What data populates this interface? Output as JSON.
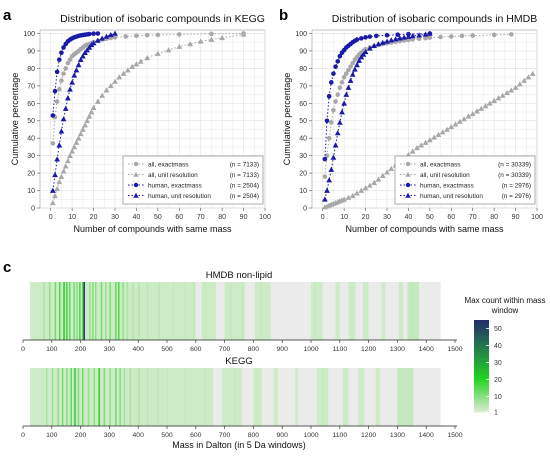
{
  "panel_letters": [
    "a",
    "b",
    "c"
  ],
  "colors": {
    "all": "#a8a8a8",
    "human": "#1a1aa8",
    "grid": "#e4e4e4",
    "strip_bg": "#ebebeb",
    "heat_low": "#d8ecd0",
    "heat_mid": "#22d322",
    "heat_high": "#232a6e"
  },
  "chart_data": [
    {
      "type": "line",
      "panel": "a",
      "title": "Distribution of isobaric compounds in KEGG",
      "xlabel": "Number of compounds with same mass",
      "ylabel": "Cumulative percentage",
      "xlim": [
        -5,
        100
      ],
      "ylim": [
        0,
        102
      ],
      "xticks": [
        0,
        10,
        20,
        30,
        40,
        50,
        60,
        70,
        80,
        90,
        100
      ],
      "yticks": [
        0,
        10,
        20,
        30,
        40,
        50,
        60,
        70,
        80,
        90,
        100
      ],
      "grid": true,
      "legend": "bottom-right",
      "series": [
        {
          "name": "all, exactmass",
          "n": "(n = 7133)",
          "color": "#a8a8a8",
          "marker": "circle",
          "x": [
            1,
            2,
            3,
            4,
            5,
            6,
            7,
            8,
            9,
            10,
            11,
            12,
            13,
            14,
            15,
            16,
            17,
            18,
            19,
            20,
            22,
            24,
            26,
            28,
            30,
            35,
            40,
            45,
            50,
            60,
            75,
            90
          ],
          "y": [
            37,
            52,
            61,
            68,
            73,
            77,
            80,
            83,
            85,
            87,
            88,
            89,
            90,
            91,
            92,
            93,
            93.5,
            94,
            94.5,
            95,
            95.8,
            96.5,
            97,
            97.4,
            97.8,
            98.3,
            98.7,
            99,
            99.2,
            99.5,
            99.8,
            100
          ]
        },
        {
          "name": "all, unit resolution",
          "n": "(n = 7133)",
          "color": "#a8a8a8",
          "marker": "triangle",
          "x": [
            1,
            2,
            3,
            4,
            5,
            6,
            7,
            8,
            9,
            10,
            11,
            12,
            13,
            14,
            15,
            16,
            17,
            18,
            19,
            20,
            22,
            24,
            26,
            28,
            30,
            32,
            34,
            36,
            38,
            40,
            42,
            45,
            50,
            55,
            60,
            65,
            70,
            75,
            80,
            90
          ],
          "y": [
            3,
            7,
            11,
            15,
            18,
            21,
            24,
            27,
            30,
            32.5,
            35,
            37.5,
            40,
            42.5,
            45,
            47.5,
            50,
            52.5,
            55,
            57.5,
            61,
            64.5,
            67.5,
            70,
            72.5,
            75,
            77,
            79,
            81,
            82.5,
            84,
            86,
            88.5,
            90.5,
            92.5,
            94,
            95.5,
            96.5,
            97.5,
            99.5
          ]
        },
        {
          "name": "human, exactmass",
          "n": "(n = 2504)",
          "color": "#1a1aa8",
          "marker": "circle",
          "x": [
            1,
            2,
            3,
            4,
            5,
            6,
            7,
            8,
            9,
            10,
            11,
            12,
            13,
            14,
            15,
            16,
            17,
            18,
            20,
            22
          ],
          "y": [
            53,
            67,
            78,
            85,
            89,
            92,
            94,
            95.5,
            96.5,
            97.2,
            97.8,
            98.2,
            98.6,
            98.9,
            99.1,
            99.3,
            99.5,
            99.7,
            99.9,
            100
          ]
        },
        {
          "name": "human, unit resolution",
          "n": "(n = 2504)",
          "color": "#1a1aa8",
          "marker": "triangle",
          "x": [
            1,
            2,
            3,
            4,
            5,
            6,
            7,
            8,
            9,
            10,
            11,
            12,
            13,
            14,
            15,
            16,
            17,
            18,
            19,
            20,
            22,
            24,
            26,
            28,
            30
          ],
          "y": [
            10,
            19,
            28,
            36,
            44,
            51,
            57,
            63,
            68,
            72,
            76,
            79,
            82,
            85,
            87,
            89,
            90.5,
            92,
            93.5,
            94.5,
            96,
            97.2,
            98.3,
            99.2,
            100
          ]
        }
      ]
    },
    {
      "type": "line",
      "panel": "b",
      "title": "Distribution of isobaric compounds in HMDB",
      "xlabel": "Number of compounds with same mass",
      "ylabel": "Cumulative percentage",
      "xlim": [
        -5,
        100
      ],
      "ylim": [
        0,
        102
      ],
      "xticks": [
        0,
        10,
        20,
        30,
        40,
        50,
        60,
        70,
        80,
        90,
        100
      ],
      "yticks": [
        0,
        10,
        20,
        30,
        40,
        50,
        60,
        70,
        80,
        90,
        100
      ],
      "grid": true,
      "legend": "bottom-right",
      "series": [
        {
          "name": "all, exactmass",
          "n": "(n = 30339)",
          "color": "#a8a8a8",
          "marker": "circle",
          "x": [
            1,
            2,
            3,
            4,
            5,
            6,
            7,
            8,
            9,
            10,
            11,
            12,
            13,
            14,
            15,
            16,
            17,
            18,
            19,
            20,
            22,
            24,
            26,
            28,
            30,
            32,
            34,
            36,
            38,
            40,
            42,
            45,
            48,
            50,
            55,
            60,
            65,
            70,
            80,
            88
          ],
          "y": [
            18,
            30,
            40,
            49,
            56,
            61,
            65,
            69,
            72,
            75,
            77,
            79,
            81,
            83,
            85,
            86.5,
            88,
            89,
            90,
            91,
            92,
            92.8,
            93.4,
            93.9,
            94.4,
            94.8,
            95.2,
            95.6,
            96,
            96.3,
            96.6,
            97,
            97.3,
            97.6,
            98,
            98.3,
            98.6,
            98.8,
            99.2,
            99.5
          ]
        },
        {
          "name": "all, unit resolution",
          "n": "(n = 30339)",
          "color": "#a8a8a8",
          "marker": "triangle",
          "x": [
            1,
            2,
            3,
            4,
            5,
            6,
            7,
            8,
            9,
            10,
            12,
            14,
            16,
            18,
            20,
            22,
            24,
            26,
            28,
            30,
            32,
            34,
            36,
            38,
            40,
            42,
            44,
            46,
            48,
            50,
            52,
            54,
            56,
            58,
            60,
            62,
            64,
            66,
            68,
            70,
            72,
            74,
            76,
            78,
            80,
            82,
            84,
            86,
            88,
            90,
            92,
            94,
            96,
            98
          ],
          "y": [
            0.5,
            1,
            1.5,
            2,
            2.5,
            3,
            3.5,
            4,
            4.5,
            5,
            6,
            7,
            8.5,
            10,
            11.5,
            13,
            14.5,
            16.5,
            18.5,
            20.5,
            22.5,
            24.5,
            26.5,
            28.5,
            30.5,
            32.5,
            34.5,
            36,
            37.5,
            39,
            40.5,
            42,
            43.5,
            45,
            46.5,
            48,
            49.5,
            51,
            52.5,
            54,
            55.5,
            57,
            58.5,
            60,
            61.5,
            63,
            64.5,
            66,
            67.5,
            69,
            71,
            73,
            75,
            77
          ]
        },
        {
          "name": "human, exactmass",
          "n": "(n = 2976)",
          "color": "#1a1aa8",
          "marker": "circle",
          "x": [
            1,
            2,
            3,
            4,
            5,
            6,
            7,
            8,
            9,
            10,
            11,
            12,
            13,
            14,
            15,
            16,
            18,
            20,
            22,
            25,
            30,
            35,
            40,
            50
          ],
          "y": [
            28,
            50,
            64,
            72,
            77,
            81,
            84,
            87,
            89,
            90.5,
            92,
            93,
            94,
            95,
            95.8,
            96.5,
            97.2,
            97.8,
            98.2,
            98.6,
            99,
            99.3,
            99.6,
            100
          ]
        },
        {
          "name": "human, unit resolution",
          "n": "(n = 2976)",
          "color": "#1a1aa8",
          "marker": "triangle",
          "x": [
            1,
            2,
            3,
            4,
            5,
            6,
            7,
            8,
            9,
            10,
            11,
            12,
            13,
            14,
            15,
            16,
            17,
            18,
            19,
            20,
            22,
            24,
            26,
            28,
            30,
            32,
            34,
            36,
            38,
            40,
            42,
            45,
            48,
            50
          ],
          "y": [
            5,
            10,
            16,
            22,
            29,
            36,
            43,
            49,
            55,
            60,
            65,
            69,
            73,
            76.5,
            79.5,
            82,
            84.5,
            86.5,
            88,
            89.5,
            91.5,
            93,
            94,
            94.8,
            95.5,
            96.2,
            96.8,
            97.3,
            97.8,
            98.2,
            98.6,
            99,
            99.5,
            100
          ]
        }
      ]
    },
    {
      "type": "heatmap",
      "panel": "c",
      "title": "HMDB non-lipid",
      "xlim": [
        0,
        1500
      ],
      "xticks": [
        0,
        100,
        200,
        300,
        400,
        500,
        600,
        700,
        800,
        900,
        1000,
        1100,
        1200,
        1300,
        1400,
        1500
      ],
      "colorbar": {
        "title": "Max count within mass window",
        "ticks": [
          1,
          10,
          20,
          30,
          40,
          50
        ],
        "range": [
          1,
          55
        ]
      },
      "bands": [
        {
          "from": 25,
          "to": 600,
          "value": 2
        },
        {
          "from": 620,
          "to": 670,
          "value": 2
        },
        {
          "from": 700,
          "to": 770,
          "value": 2
        },
        {
          "from": 805,
          "to": 860,
          "value": 2
        },
        {
          "from": 1000,
          "to": 1040,
          "value": 2
        },
        {
          "from": 1085,
          "to": 1100,
          "value": 2
        },
        {
          "from": 1130,
          "to": 1155,
          "value": 2
        },
        {
          "from": 1180,
          "to": 1200,
          "value": 2
        },
        {
          "from": 1245,
          "to": 1258,
          "value": 2
        },
        {
          "from": 1305,
          "to": 1320,
          "value": 2
        },
        {
          "from": 1335,
          "to": 1375,
          "value": 3
        }
      ],
      "windows": [
        [
          70,
          6
        ],
        [
          90,
          9
        ],
        [
          110,
          12
        ],
        [
          125,
          16
        ],
        [
          140,
          22
        ],
        [
          150,
          18
        ],
        [
          160,
          14
        ],
        [
          175,
          12
        ],
        [
          185,
          10
        ],
        [
          195,
          17
        ],
        [
          205,
          15
        ],
        [
          210,
          55
        ],
        [
          230,
          8
        ],
        [
          240,
          10
        ],
        [
          250,
          9
        ],
        [
          270,
          12
        ],
        [
          285,
          8
        ],
        [
          300,
          11
        ],
        [
          320,
          14
        ],
        [
          330,
          16
        ],
        [
          345,
          9
        ],
        [
          360,
          6
        ],
        [
          380,
          5
        ],
        [
          400,
          5
        ],
        [
          430,
          4
        ],
        [
          470,
          4
        ],
        [
          520,
          3
        ],
        [
          560,
          3
        ],
        [
          590,
          4
        ],
        [
          630,
          3
        ],
        [
          720,
          3
        ],
        [
          760,
          3
        ],
        [
          825,
          3
        ],
        [
          1010,
          3
        ],
        [
          1140,
          3
        ],
        [
          1350,
          4
        ],
        [
          1365,
          3
        ]
      ]
    },
    {
      "type": "heatmap",
      "panel": "c",
      "title": "KEGG",
      "xlabel": "Mass in Dalton (in 5 Da windows)",
      "xlim": [
        0,
        1500
      ],
      "xticks": [
        0,
        100,
        200,
        300,
        400,
        500,
        600,
        700,
        800,
        900,
        1000,
        1100,
        1200,
        1300,
        1400,
        1500
      ],
      "bands": [
        {
          "from": 25,
          "to": 660,
          "value": 2
        },
        {
          "from": 690,
          "to": 760,
          "value": 2
        },
        {
          "from": 800,
          "to": 830,
          "value": 2
        },
        {
          "from": 870,
          "to": 885,
          "value": 2
        },
        {
          "from": 945,
          "to": 955,
          "value": 2
        },
        {
          "from": 1020,
          "to": 1060,
          "value": 2
        },
        {
          "from": 1110,
          "to": 1130,
          "value": 2
        },
        {
          "from": 1165,
          "to": 1185,
          "value": 2
        },
        {
          "from": 1225,
          "to": 1240,
          "value": 2
        },
        {
          "from": 1300,
          "to": 1355,
          "value": 3
        }
      ],
      "windows": [
        [
          80,
          6
        ],
        [
          100,
          8
        ],
        [
          120,
          9
        ],
        [
          135,
          12
        ],
        [
          150,
          10
        ],
        [
          165,
          14
        ],
        [
          178,
          22
        ],
        [
          190,
          11
        ],
        [
          205,
          13
        ],
        [
          225,
          9
        ],
        [
          245,
          10
        ],
        [
          262,
          20
        ],
        [
          280,
          11
        ],
        [
          300,
          9
        ],
        [
          320,
          12
        ],
        [
          335,
          10
        ],
        [
          350,
          7
        ],
        [
          370,
          6
        ],
        [
          400,
          5
        ],
        [
          430,
          4
        ],
        [
          465,
          4
        ],
        [
          500,
          3
        ],
        [
          560,
          3
        ],
        [
          630,
          3
        ],
        [
          735,
          3
        ],
        [
          1040,
          3
        ],
        [
          1320,
          3
        ],
        [
          1345,
          3
        ]
      ]
    }
  ]
}
